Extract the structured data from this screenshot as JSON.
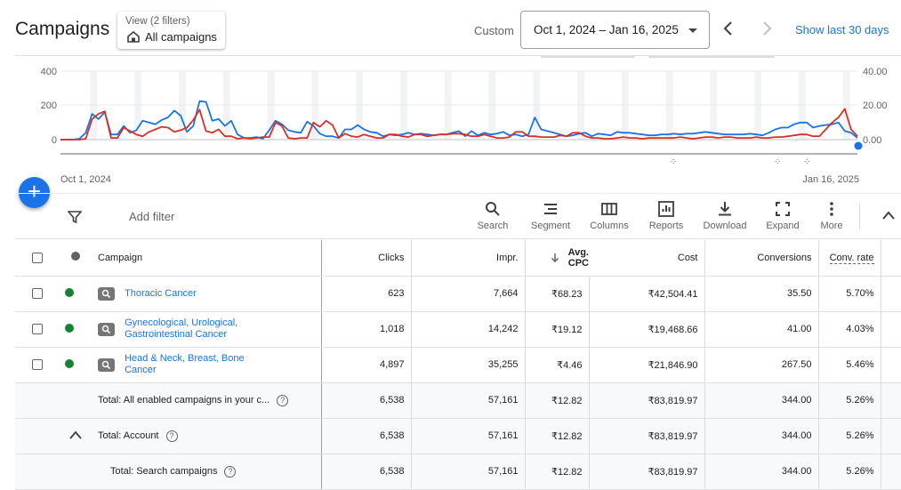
{
  "header": {
    "title": "Campaigns",
    "view_label": "View (2 filters)",
    "view_value": "All campaigns",
    "custom_label": "Custom",
    "date_range": "Oct 1, 2024 – Jan 16, 2025",
    "show_last_label": "Show last 30 days"
  },
  "chart_data": {
    "type": "line",
    "y_left_ticks": [
      "400",
      "200",
      "0"
    ],
    "y_right_ticks": [
      "40.00",
      "20.00",
      "0.00"
    ],
    "x_start_label": "Oct 1, 2024",
    "x_end_label": "Jan 16, 2025",
    "ylim_left": [
      0,
      400
    ],
    "ylim_right": [
      0,
      40
    ],
    "series": [
      {
        "color": "#1a73e8",
        "axis": "left",
        "values": [
          0,
          0,
          0,
          5,
          40,
          150,
          120,
          160,
          30,
          30,
          80,
          40,
          55,
          110,
          100,
          90,
          115,
          130,
          170,
          140,
          45,
          80,
          225,
          220,
          110,
          120,
          80,
          110,
          30,
          10,
          10,
          15,
          5,
          55,
          110,
          90,
          55,
          45,
          40,
          105,
          80,
          35,
          20,
          20,
          10,
          60,
          60,
          85,
          60,
          45,
          40,
          20,
          30,
          25,
          30,
          40,
          30,
          35,
          30,
          25,
          30,
          30,
          40,
          50,
          20,
          50,
          25,
          40,
          30,
          35,
          45,
          25,
          30,
          20,
          30,
          130,
          60,
          50,
          40,
          30,
          20,
          25,
          35,
          40,
          20,
          35,
          30,
          25,
          45,
          40,
          40,
          35,
          30,
          25,
          25,
          30,
          30,
          35,
          30,
          35,
          35,
          40,
          45,
          40,
          35,
          30,
          30,
          30,
          30,
          35,
          30,
          25,
          40,
          60,
          70,
          70,
          90,
          100,
          100,
          70,
          80,
          85,
          90,
          100,
          50,
          40,
          10
        ]
      },
      {
        "color": "#d93025",
        "axis": "left",
        "values": [
          0,
          0,
          0,
          0,
          5,
          120,
          150,
          165,
          10,
          10,
          70,
          50,
          30,
          20,
          45,
          60,
          75,
          70,
          45,
          55,
          70,
          115,
          175,
          50,
          40,
          60,
          20,
          20,
          5,
          10,
          5,
          10,
          15,
          15,
          100,
          80,
          10,
          5,
          10,
          10,
          100,
          75,
          110,
          85,
          10,
          35,
          20,
          15,
          30,
          20,
          10,
          10,
          30,
          30,
          20,
          15,
          30,
          30,
          20,
          25,
          30,
          30,
          35,
          35,
          30,
          20,
          20,
          30,
          20,
          10,
          10,
          15,
          45,
          45,
          20,
          20,
          15,
          15,
          15,
          25,
          20,
          40,
          40,
          20,
          10,
          10,
          5,
          5,
          10,
          15,
          10,
          10,
          5,
          10,
          10,
          10,
          10,
          10,
          15,
          10,
          5,
          10,
          15,
          15,
          10,
          15,
          15,
          10,
          10,
          10,
          15,
          10,
          10,
          15,
          15,
          20,
          25,
          30,
          30,
          20,
          20,
          60,
          100,
          130,
          180,
          60,
          20
        ]
      }
    ]
  },
  "toolbar": {
    "add_filter": "Add filter",
    "search": "Search",
    "segment": "Segment",
    "columns": "Columns",
    "reports": "Reports",
    "download": "Download",
    "expand": "Expand",
    "more": "More"
  },
  "table": {
    "headers": {
      "campaign": "Campaign",
      "clicks": "Clicks",
      "impr": "Impr.",
      "avg_cpc_line1": "Avg.",
      "avg_cpc_line2": "CPC",
      "cost": "Cost",
      "conversions": "Conversions",
      "conv_rate": "Conv. rate"
    },
    "rows": [
      {
        "name": "Thoracic Cancer",
        "clicks": "623",
        "impr": "7,664",
        "cpc": "₹68.23",
        "cost": "₹42,504.41",
        "conv": "35.50",
        "rate": "5.70%"
      },
      {
        "name_line1": "Gynecological, Urological,",
        "name_line2": "Gastrointestinal Cancer",
        "clicks": "1,018",
        "impr": "14,242",
        "cpc": "₹19.12",
        "cost": "₹19,468.66",
        "conv": "41.00",
        "rate": "4.03%"
      },
      {
        "name_line1": "Head & Neck, Breast, Bone",
        "name_line2": "Cancer",
        "clicks": "4,897",
        "impr": "35,255",
        "cpc": "₹4.46",
        "cost": "₹21,846.90",
        "conv": "267.50",
        "rate": "5.46%"
      }
    ],
    "totals": [
      {
        "label": "Total: All enabled campaigns in your c...",
        "clicks": "6,538",
        "impr": "57,161",
        "cpc": "₹12.82",
        "cost": "₹83,819.97",
        "conv": "344.00",
        "rate": "5.26%"
      },
      {
        "label": "Total: Account",
        "clicks": "6,538",
        "impr": "57,161",
        "cpc": "₹12.82",
        "cost": "₹83,819.97",
        "conv": "344.00",
        "rate": "5.26%"
      },
      {
        "label": "Total: Search campaigns",
        "clicks": "6,538",
        "impr": "57,161",
        "cpc": "₹12.82",
        "cost": "₹83,819.97",
        "conv": "344.00",
        "rate": "5.26%"
      }
    ]
  },
  "colors": {
    "accent": "#1a73e8",
    "status_enabled": "#188038",
    "series_red": "#d93025"
  }
}
